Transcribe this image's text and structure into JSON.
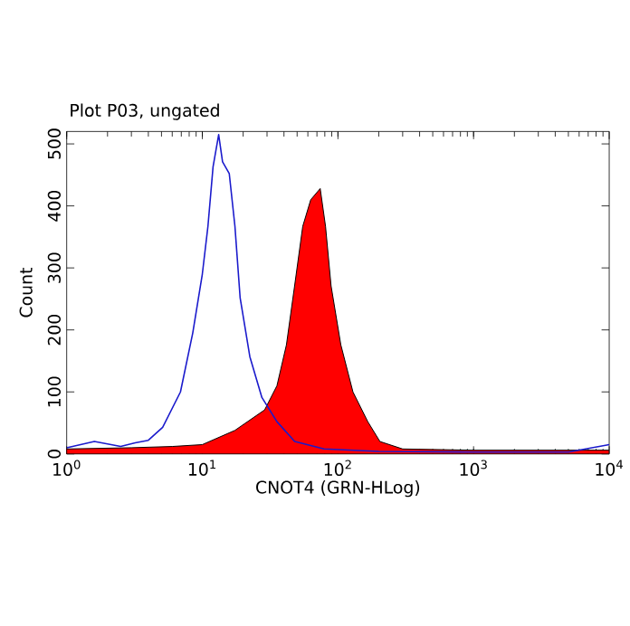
{
  "chart_data": {
    "type": "area",
    "title": "Plot P03, ungated",
    "xlabel": "CNOT4 (GRN-HLog)",
    "ylabel": "Count",
    "log": "x",
    "xlim": [
      1,
      10000
    ],
    "ylim": [
      0,
      520
    ],
    "xticks": [
      {
        "value": 1,
        "label": "10$^{0}$"
      },
      {
        "value": 10,
        "label": "10$^{1}$"
      },
      {
        "value": 100,
        "label": "10$^{2}$"
      },
      {
        "value": 1000,
        "label": "10$^{3}$"
      },
      {
        "value": 10000,
        "label": "10$^{4}$"
      }
    ],
    "yticks": [
      0,
      100,
      200,
      300,
      400,
      500
    ],
    "series": [
      {
        "color": "#ff0000",
        "x": [
          1,
          3,
          6,
          10,
          17.4,
          28.8,
          35.5,
          41.7,
          47.9,
          55,
          63,
          74,
          81,
          89,
          105,
          129,
          166,
          204,
          300,
          1000,
          10000
        ],
        "values": [
          8,
          10,
          12,
          15,
          38,
          71,
          110,
          176,
          271,
          367,
          410,
          428,
          367,
          271,
          176,
          100,
          52,
          20,
          8,
          6,
          6
        ]
      },
      {
        "type": "line",
        "color": "#1a1acc",
        "x": [
          1,
          1.6,
          2.5,
          3.2,
          4,
          5.1,
          6.9,
          8.5,
          10,
          11,
          12,
          13.2,
          14.1,
          15.8,
          17.4,
          19,
          22.4,
          27.5,
          35.5,
          48,
          79,
          200,
          1000,
          5000,
          10000
        ],
        "values": [
          10,
          20,
          12,
          18,
          22,
          43,
          100,
          195,
          290,
          367,
          463,
          515,
          471,
          452,
          367,
          252,
          157,
          91,
          52,
          20,
          8,
          4,
          3,
          3,
          15
        ]
      }
    ]
  }
}
